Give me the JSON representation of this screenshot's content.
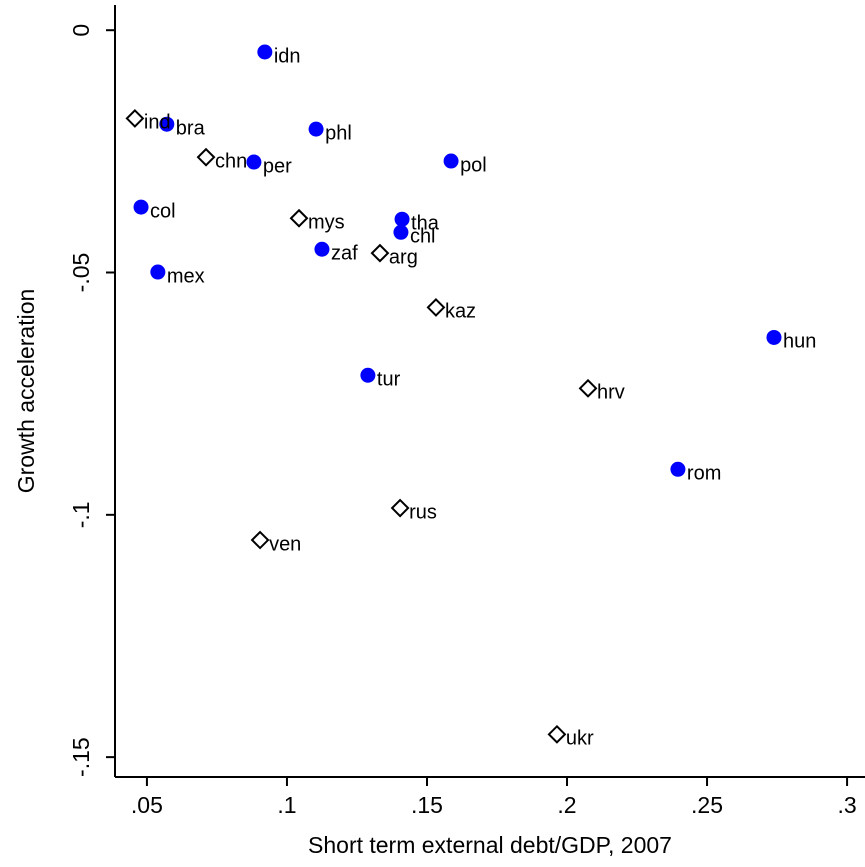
{
  "chart_data": {
    "type": "scatter",
    "xlabel": "Short term external debt/GDP, 2007",
    "ylabel": "Growth acceleration",
    "xlim": [
      0.0386,
      0.3064
    ],
    "ylim": [
      -0.1541,
      0.0052
    ],
    "xticks": [
      {
        "value": 0.05,
        "label": ".05"
      },
      {
        "value": 0.1,
        "label": ".1"
      },
      {
        "value": 0.15,
        "label": ".15"
      },
      {
        "value": 0.2,
        "label": ".2"
      },
      {
        "value": 0.25,
        "label": ".25"
      },
      {
        "value": 0.3,
        "label": ".3"
      }
    ],
    "yticks": [
      0,
      {
        "value": -0.05,
        "label": "-.05"
      },
      {
        "value": -0.1,
        "label": "-.1"
      },
      {
        "value": -0.15,
        "label": "-.15"
      }
    ],
    "series": [
      {
        "marker": "circle",
        "color": "#0000ff",
        "labels": [
          "idn",
          "bra",
          "phl",
          "per",
          "pol",
          "col",
          "tha",
          "chl",
          "zaf",
          "mex",
          "hun",
          "tur",
          "rom"
        ],
        "x": [
          0.0921,
          0.0571,
          0.1104,
          0.0882,
          0.1586,
          0.0479,
          0.1411,
          0.1407,
          0.1125,
          0.0539,
          0.2739,
          0.1289,
          0.2396
        ],
        "values": [
          -0.0045,
          -0.0194,
          -0.0204,
          -0.0272,
          -0.027,
          -0.0365,
          -0.039,
          -0.0417,
          -0.0452,
          -0.0499,
          -0.0634,
          -0.0712,
          -0.0906
        ]
      },
      {
        "marker": "diamond",
        "color": "#000000",
        "labels": [
          "ind",
          "chn",
          "mys",
          "arg",
          "kaz",
          "hrv",
          "rus",
          "ven",
          "ukr"
        ],
        "x": [
          0.0457,
          0.0711,
          0.1043,
          0.1332,
          0.1532,
          0.2075,
          0.1404,
          0.0904,
          0.1964
        ],
        "values": [
          -0.0182,
          -0.0262,
          -0.0388,
          -0.046,
          -0.0572,
          -0.0739,
          -0.0986,
          -0.1052,
          -0.1453
        ]
      }
    ]
  }
}
